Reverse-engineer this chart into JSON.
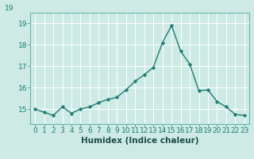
{
  "x": [
    0,
    1,
    2,
    3,
    4,
    5,
    6,
    7,
    8,
    9,
    10,
    11,
    12,
    13,
    14,
    15,
    16,
    17,
    18,
    19,
    20,
    21,
    22,
    23
  ],
  "y": [
    15.0,
    14.85,
    14.7,
    15.1,
    14.8,
    15.0,
    15.1,
    15.3,
    15.45,
    15.55,
    15.9,
    16.3,
    16.6,
    16.95,
    18.1,
    18.9,
    17.7,
    17.1,
    15.85,
    15.9,
    15.35,
    15.1,
    14.75,
    14.7
  ],
  "xlabel": "Humidex (Indice chaleur)",
  "line_color": "#1d7d72",
  "marker_color": "#1d7d72",
  "bg_color": "#cdeae4",
  "grid_color": "#ffffff",
  "spine_color": "#6bb8ae",
  "tick_color": "#1d7d72",
  "xlabel_color": "#1d4d47",
  "ylim_min": 14.3,
  "ylim_max": 19.5,
  "yticks": [
    15,
    16,
    17,
    18,
    19
  ],
  "xticks": [
    0,
    1,
    2,
    3,
    4,
    5,
    6,
    7,
    8,
    9,
    10,
    11,
    12,
    13,
    14,
    15,
    16,
    17,
    18,
    19,
    20,
    21,
    22,
    23
  ],
  "xtick_labels": [
    "0",
    "1",
    "2",
    "3",
    "4",
    "5",
    "6",
    "7",
    "8",
    "9",
    "10",
    "11",
    "12",
    "13",
    "14",
    "15",
    "16",
    "17",
    "18",
    "19",
    "20",
    "21",
    "22",
    "23"
  ],
  "top_label": "19",
  "font_size_tick": 6.5,
  "font_size_xlabel": 7.5,
  "line_width": 1.0,
  "marker_size": 2.2
}
